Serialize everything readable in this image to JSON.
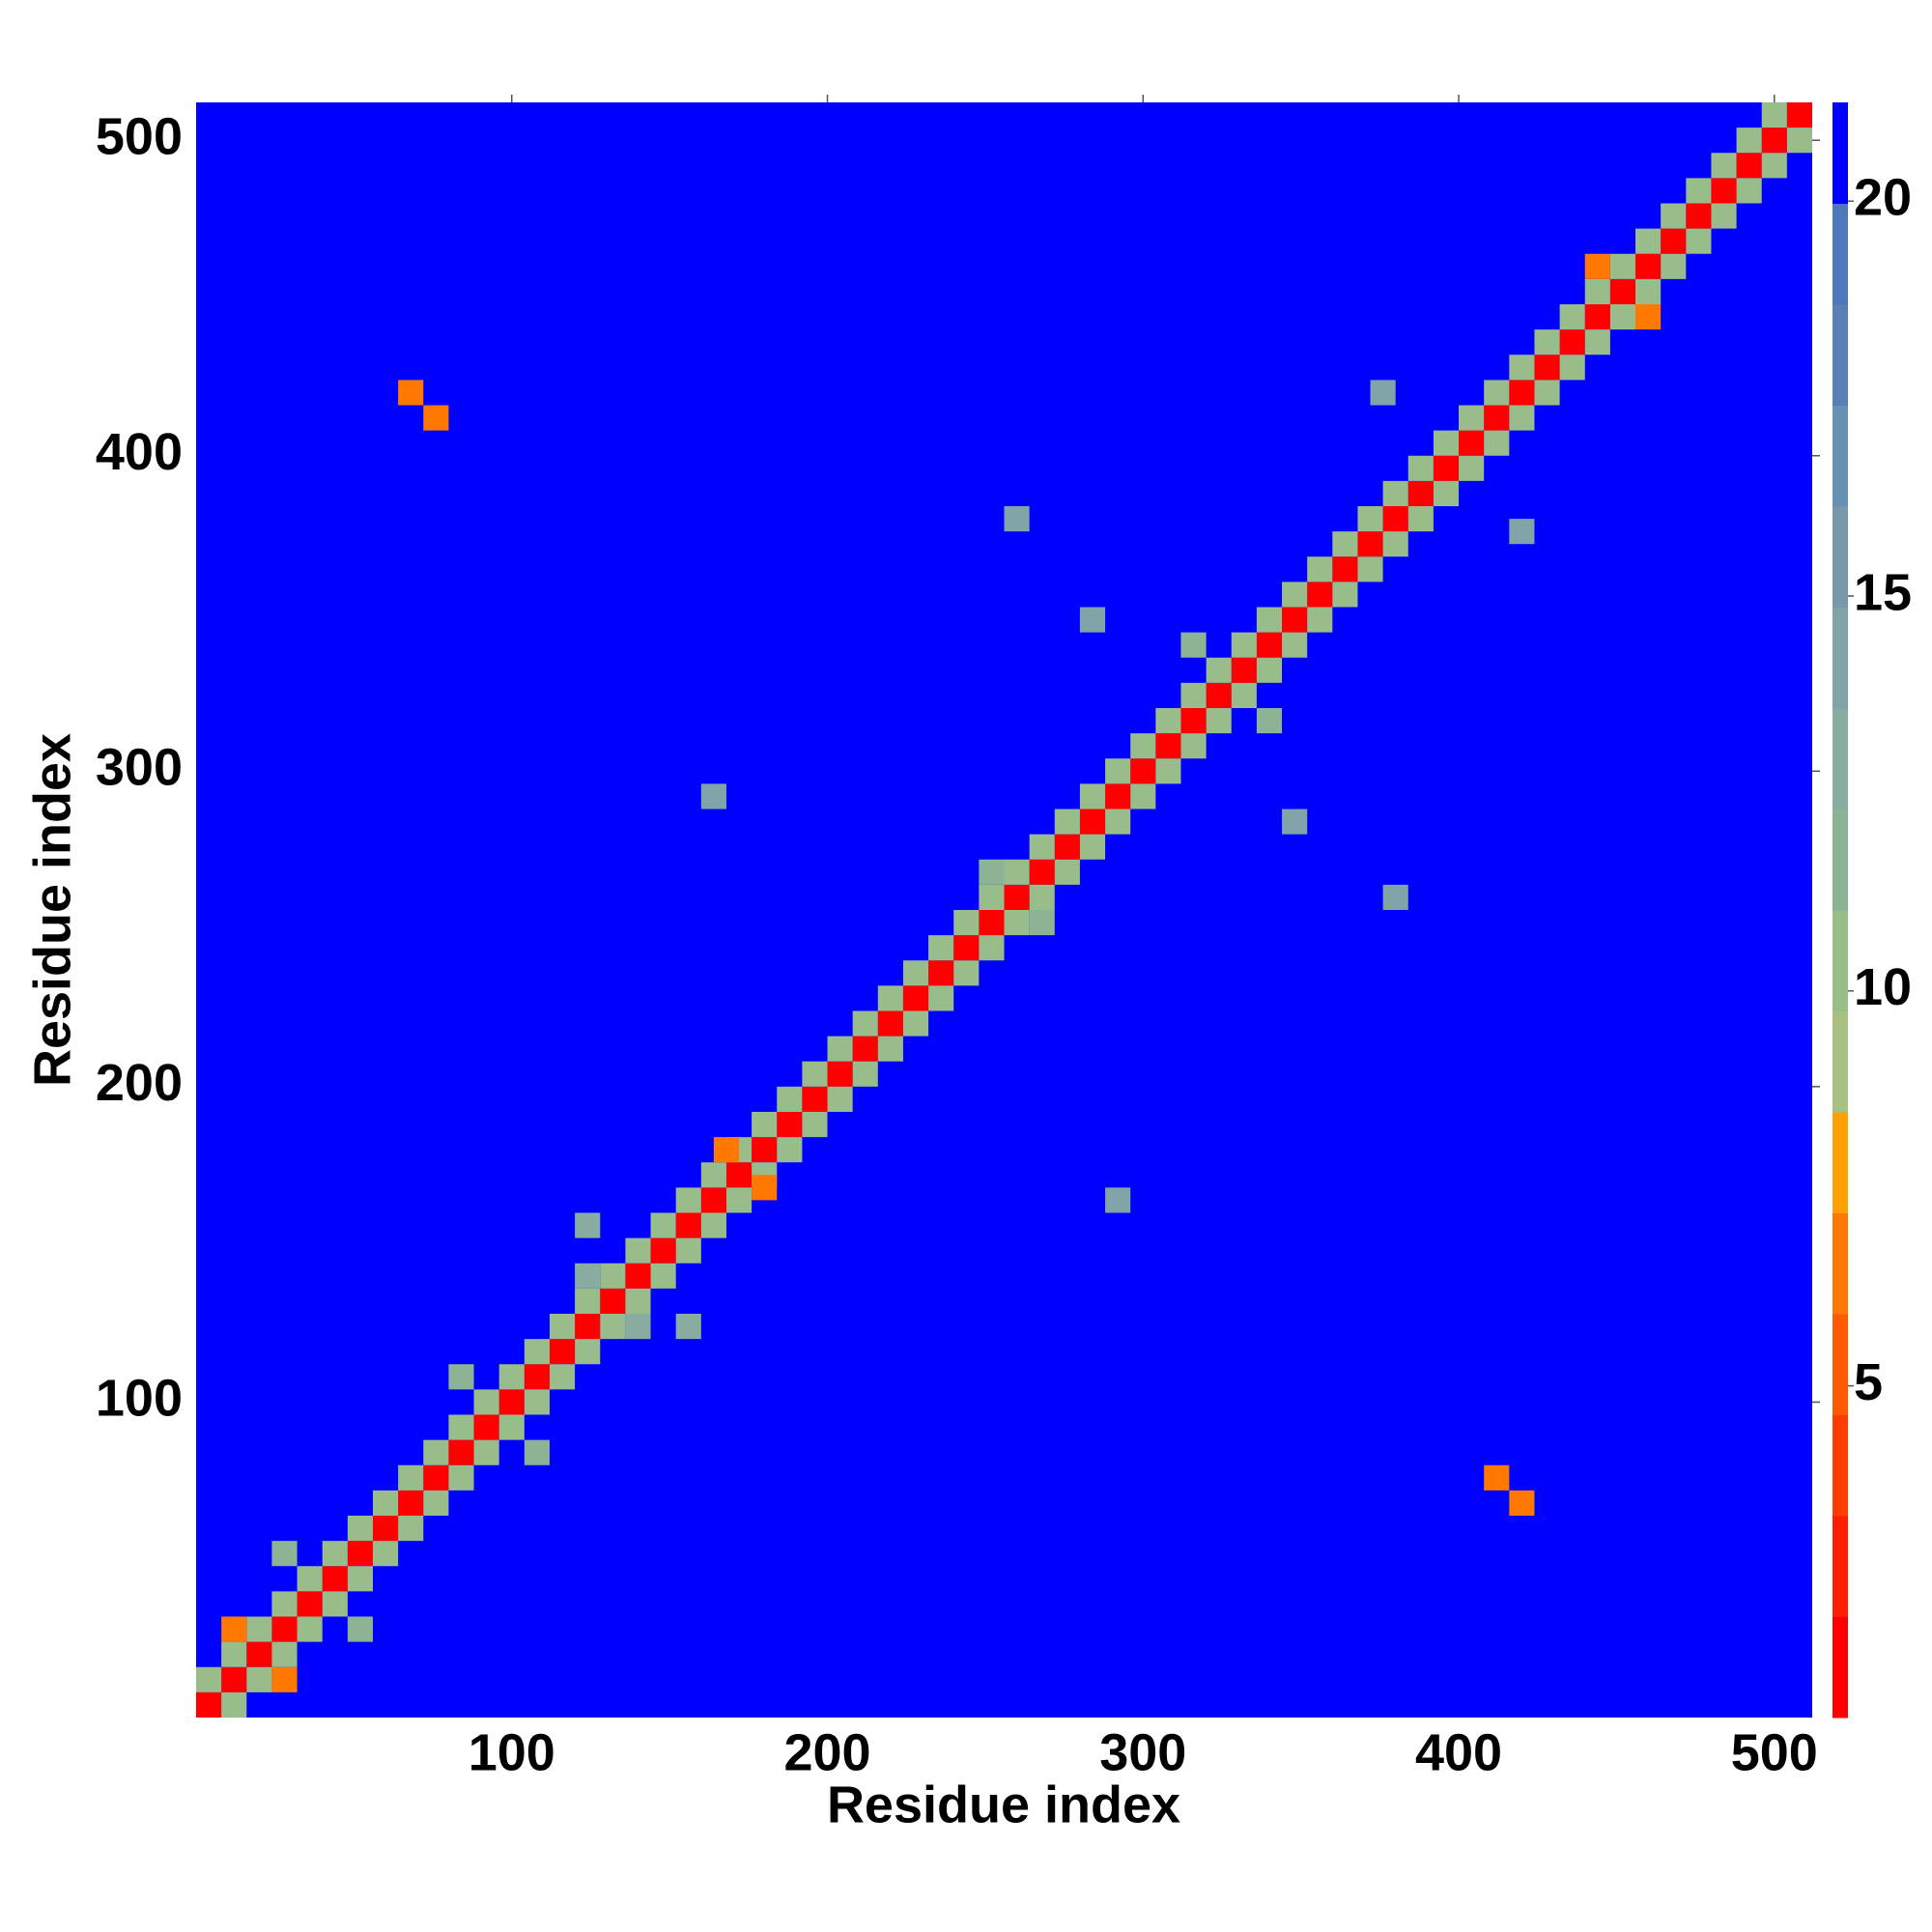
{
  "chart_data": {
    "type": "heatmap",
    "xlabel": "Residue index",
    "ylabel": "Residue index",
    "xlim": [
      0,
      512
    ],
    "ylim": [
      0,
      512
    ],
    "xticks": [
      100,
      200,
      300,
      400,
      500
    ],
    "yticks": [
      100,
      200,
      300,
      400,
      500
    ],
    "background": "#0000ff",
    "colorbar": {
      "lim": [
        0.8,
        21.25
      ],
      "ticks": [
        5,
        10,
        15,
        20
      ],
      "colors": [
        "#ff0000",
        "#ff1e00",
        "#ff3c00",
        "#ff5a00",
        "#ff7800",
        "#ffa000",
        "#a8c080",
        "#98bc8a",
        "#8cb494",
        "#88aca0",
        "#80a4a8",
        "#7898ac",
        "#6890b4",
        "#5880b8",
        "#4f78bc",
        "#0000ff"
      ]
    },
    "x": [
      4,
      12,
      20,
      28,
      36,
      44,
      52,
      60,
      68,
      76,
      84,
      92,
      100,
      108,
      116,
      124,
      132,
      140,
      148,
      156,
      164,
      172,
      180,
      188,
      196,
      204,
      212,
      220,
      228,
      236,
      244,
      252,
      260,
      268,
      276,
      284,
      292,
      300,
      308,
      316,
      324,
      332,
      340,
      348,
      356,
      364,
      372,
      380,
      388,
      396,
      404,
      412,
      420,
      428,
      436,
      444,
      452,
      460,
      468,
      476,
      484,
      492,
      500,
      508,
      4,
      12,
      20,
      28,
      36,
      44,
      52,
      60,
      68,
      76,
      84,
      92,
      100,
      108,
      116,
      124,
      132,
      140,
      148,
      156,
      164,
      172,
      180,
      188,
      196,
      204,
      212,
      220,
      228,
      236,
      244,
      252,
      260,
      268,
      276,
      284,
      292,
      300,
      308,
      316,
      324,
      332,
      340,
      348,
      356,
      364,
      372,
      380,
      388,
      396,
      404,
      412,
      420,
      428,
      436,
      444,
      452,
      460,
      468,
      476,
      484,
      492,
      500,
      12,
      20,
      28,
      36,
      44,
      52,
      60,
      68,
      76,
      84,
      92,
      100,
      108,
      116,
      124,
      132,
      140,
      148,
      156,
      164,
      172,
      180,
      188,
      196,
      204,
      212,
      220,
      228,
      236,
      244,
      252,
      260,
      268,
      276,
      284,
      292,
      300,
      308,
      316,
      324,
      332,
      340,
      348,
      356,
      364,
      372,
      380,
      388,
      396,
      404,
      412,
      420,
      428,
      436,
      444,
      452,
      460,
      468,
      476,
      484,
      492,
      500,
      508,
      68,
      76,
      420,
      412,
      12,
      28,
      168,
      180,
      444,
      460,
      84,
      108,
      28,
      52,
      316,
      340,
      252,
      268,
      164,
      292,
      284,
      348,
      260,
      380,
      140,
      124,
      156,
      124,
      420,
      376
    ],
    "y": [
      4,
      12,
      20,
      28,
      36,
      44,
      52,
      60,
      68,
      76,
      84,
      92,
      100,
      108,
      116,
      124,
      132,
      140,
      148,
      156,
      164,
      172,
      180,
      188,
      196,
      204,
      212,
      220,
      228,
      236,
      244,
      252,
      260,
      268,
      276,
      284,
      292,
      300,
      308,
      316,
      324,
      332,
      340,
      348,
      356,
      364,
      372,
      380,
      388,
      396,
      404,
      412,
      420,
      428,
      436,
      444,
      452,
      460,
      468,
      476,
      484,
      492,
      500,
      508,
      12,
      20,
      28,
      36,
      44,
      52,
      60,
      68,
      76,
      84,
      92,
      100,
      108,
      116,
      124,
      132,
      140,
      148,
      156,
      164,
      172,
      180,
      188,
      196,
      204,
      212,
      220,
      228,
      236,
      244,
      252,
      260,
      268,
      276,
      284,
      292,
      300,
      308,
      316,
      324,
      332,
      340,
      348,
      356,
      364,
      372,
      380,
      388,
      396,
      404,
      412,
      420,
      428,
      436,
      444,
      452,
      460,
      468,
      476,
      484,
      492,
      500,
      508,
      4,
      12,
      20,
      28,
      36,
      44,
      52,
      60,
      68,
      76,
      84,
      92,
      100,
      108,
      116,
      124,
      132,
      140,
      148,
      156,
      164,
      172,
      180,
      188,
      196,
      204,
      212,
      220,
      228,
      236,
      244,
      252,
      260,
      268,
      276,
      284,
      292,
      300,
      308,
      316,
      324,
      332,
      340,
      348,
      356,
      364,
      372,
      380,
      388,
      396,
      404,
      412,
      420,
      428,
      436,
      444,
      452,
      460,
      468,
      476,
      484,
      492,
      500,
      420,
      412,
      68,
      76,
      28,
      12,
      180,
      168,
      460,
      444,
      108,
      84,
      52,
      28,
      340,
      316,
      268,
      252,
      292,
      164,
      348,
      284,
      380,
      260,
      124,
      140,
      124,
      156,
      376,
      420
    ],
    "values": [
      2,
      2,
      2,
      2,
      2,
      2,
      2,
      2,
      2,
      2,
      2,
      2,
      2,
      2,
      2,
      2,
      2,
      2,
      2,
      2,
      2,
      2,
      2,
      2,
      2,
      2,
      2,
      2,
      2,
      2,
      2,
      2,
      2,
      2,
      2,
      2,
      2,
      2,
      2,
      2,
      2,
      2,
      2,
      2,
      2,
      2,
      2,
      2,
      2,
      2,
      2,
      2,
      2,
      2,
      2,
      2,
      2,
      2,
      2,
      2,
      2,
      2,
      2,
      2,
      11,
      11,
      11,
      11,
      11,
      11,
      11,
      11,
      11,
      11,
      11,
      11,
      11,
      11,
      11,
      11,
      11,
      11,
      11,
      11,
      11,
      11,
      11,
      11,
      11,
      11,
      11,
      11,
      11,
      11,
      11,
      11,
      11,
      11,
      11,
      11,
      11,
      11,
      11,
      11,
      11,
      11,
      11,
      11,
      11,
      11,
      11,
      11,
      11,
      11,
      11,
      11,
      11,
      11,
      11,
      11,
      11,
      11,
      11,
      11,
      11,
      11,
      11,
      11,
      11,
      11,
      11,
      11,
      11,
      11,
      11,
      11,
      11,
      11,
      11,
      11,
      11,
      11,
      11,
      11,
      11,
      11,
      11,
      11,
      11,
      11,
      11,
      11,
      11,
      11,
      11,
      11,
      11,
      11,
      11,
      11,
      11,
      11,
      11,
      11,
      11,
      11,
      11,
      11,
      11,
      11,
      11,
      11,
      11,
      11,
      11,
      11,
      11,
      11,
      11,
      11,
      11,
      11,
      11,
      11,
      11,
      11,
      11,
      11,
      11,
      11,
      6,
      6,
      6,
      6,
      7,
      7,
      7,
      7,
      7,
      7,
      12,
      12,
      12,
      12,
      12,
      12,
      12,
      12,
      14,
      14,
      14,
      14,
      14,
      14,
      13,
      13,
      13,
      13,
      14,
      14
    ]
  }
}
